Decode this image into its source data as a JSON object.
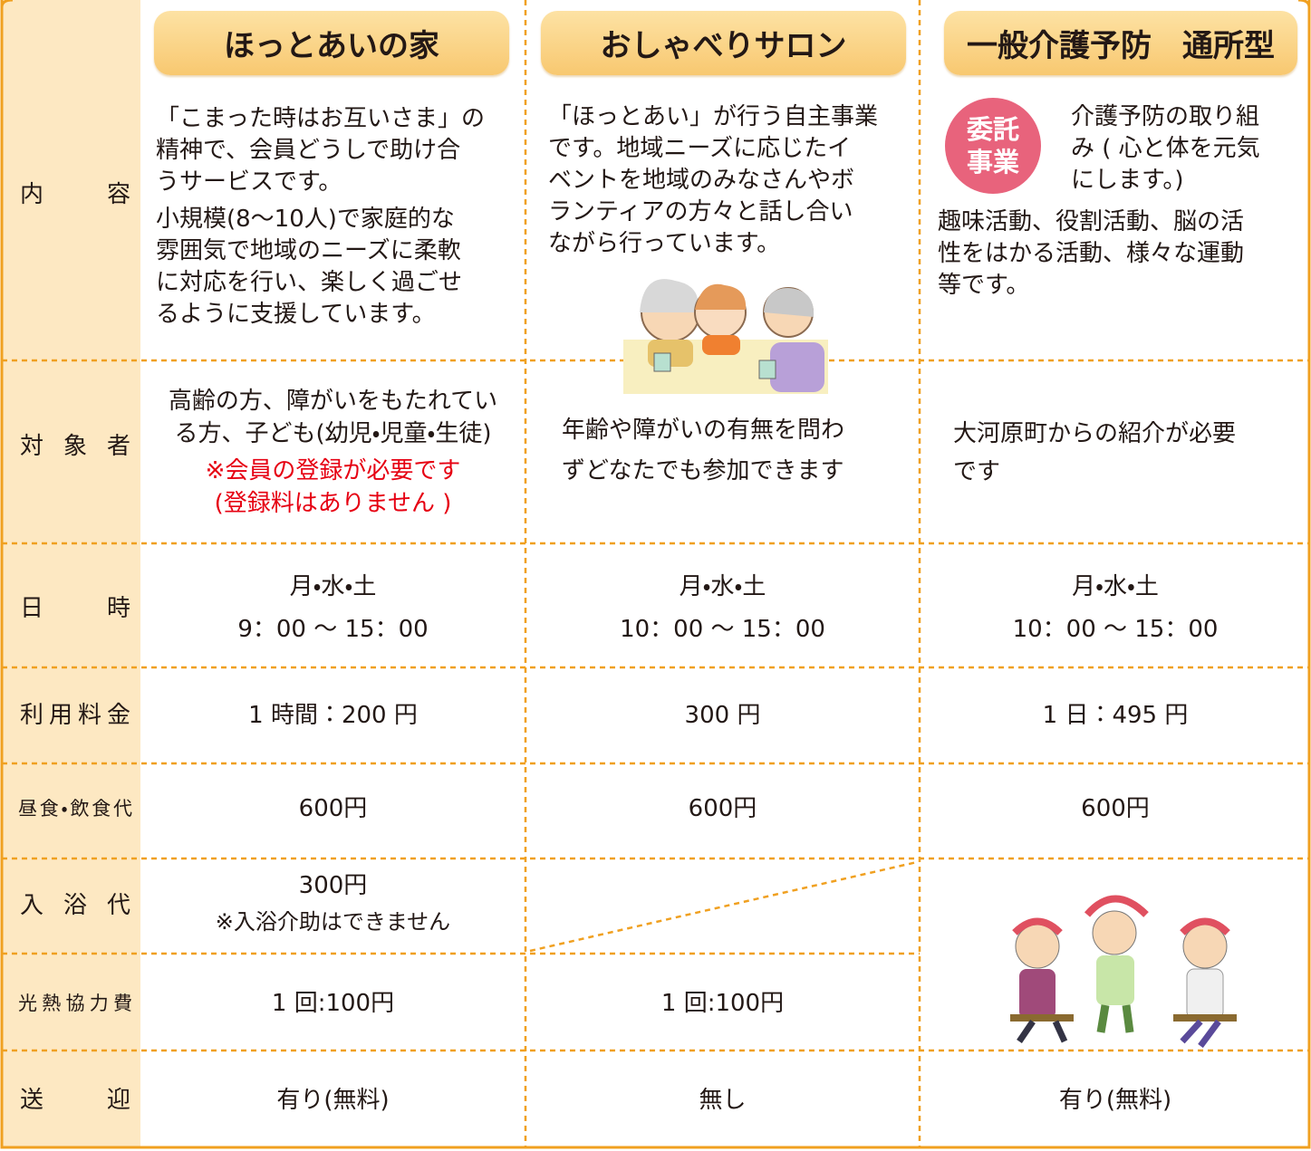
{
  "columns": [
    "ほっとあいの家",
    "おしゃべりサロン",
    "一般介護予防　通所型"
  ],
  "badge": [
    "委託",
    "事業"
  ],
  "rows": [
    {
      "label": "内容",
      "cells": [
        [
          [
            "「こまった時はお互いさま」の",
            "精神で、会員どうしで助け合",
            "うサービスです。"
          ],
          [
            "小規模(8～10人)で家庭的な",
            "雰囲気で地域のニーズに柔軟",
            "に対応を行い、楽しく過ごせ",
            "るように支援しています。"
          ]
        ],
        [
          [
            "「ほっとあい」が行う自主事業",
            "です。地域ニーズに応じたイ",
            "ベントを地域のみなさんやボ",
            "ランティアの方々と話し合い",
            "ながら行っています。"
          ]
        ],
        [
          [
            "介護予防の取り組",
            "み ( 心と体を元気",
            "にします。)"
          ],
          [
            "趣味活動、役割活動、脳の活",
            "性をはかる活動、様々な運動",
            "等です。"
          ]
        ]
      ]
    },
    {
      "label": "対象者",
      "cells": [
        [
          [
            "高齢の方、障がいをもたれてい",
            "る方、子ども(幼児・児童・生徒)"
          ],
          [
            "※会員の登録が必要です",
            "(登録料はありません )"
          ]
        ],
        [
          [
            "年齢や障がいの有無を問わ",
            "ずどなたでも参加できます"
          ]
        ],
        [
          [
            "大河原町からの紹介が必要",
            "です"
          ]
        ]
      ]
    },
    {
      "label": "日時",
      "cells": [
        [
          [
            "月・水・土",
            "9：00 ～ 15：00"
          ]
        ],
        [
          [
            "月・水・土",
            "10：00 ～ 15：00"
          ]
        ],
        [
          [
            "月・水・土",
            "10：00 ～ 15：00"
          ]
        ]
      ]
    },
    {
      "label": "利用料金",
      "cells": [
        [
          [
            "1 時間：200 円"
          ]
        ],
        [
          [
            "300 円"
          ]
        ],
        [
          [
            "1 日：495 円"
          ]
        ]
      ]
    },
    {
      "label": "昼食・飲食代",
      "cells": [
        [
          [
            "600円"
          ]
        ],
        [
          [
            "600円"
          ]
        ],
        [
          [
            "600円"
          ]
        ]
      ]
    },
    {
      "label": "入浴代",
      "cells": [
        [
          [
            "300円",
            "※入浴介助はできません"
          ]
        ]
      ]
    },
    {
      "label": "光熱協力費",
      "cells": [
        [
          [
            "1 回:100円"
          ]
        ],
        [
          [
            "1 回:100円"
          ]
        ]
      ]
    },
    {
      "label": "送迎",
      "cells": [
        [
          [
            "有り(無料)"
          ]
        ],
        [
          [
            "無し"
          ]
        ],
        [
          [
            "有り(無料)"
          ]
        ]
      ]
    }
  ]
}
